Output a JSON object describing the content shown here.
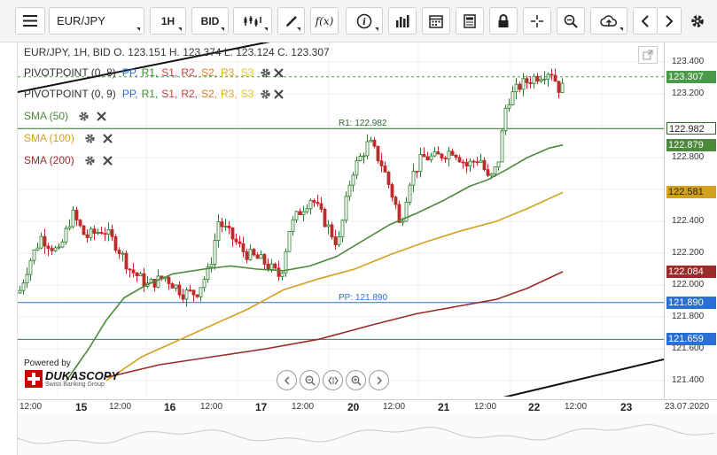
{
  "toolbar": {
    "menu_icon": "hamburger-menu-icon",
    "symbol": "EUR/JPY",
    "timeframe": "1H",
    "side": "BID",
    "buttons": [
      "chart-type-icon",
      "draw-icon",
      "function-icon",
      "info-icon",
      "volume-icon",
      "calendar-icon",
      "report-icon",
      "lock-icon",
      "crosshair-icon",
      "zoom-icon",
      "cloud-upload-icon",
      "arrow-left-icon",
      "arrow-right-icon",
      "gear-icon"
    ],
    "function_label": "f(x)"
  },
  "ohlc": {
    "text": "EUR/JPY, 1H, BID   O. 123.151 H. 123.374 L. 123.124 C. 123.307"
  },
  "legend": {
    "pivot1": "PIVOTPOINT (0, 8)",
    "pivot2": "PIVOTPOINT (0, 9)",
    "pivot_items": [
      {
        "label": "PP,",
        "color": "#2a6fd6"
      },
      {
        "label": "R1,",
        "color": "#3c8a2e"
      },
      {
        "label": "S1,",
        "color": "#d23b3b"
      },
      {
        "label": "R2,",
        "color": "#d23b3b"
      },
      {
        "label": "S2,",
        "color": "#e07b1a"
      },
      {
        "label": "R3,",
        "color": "#e0a91a"
      },
      {
        "label": "S3",
        "color": "#e8c41c"
      }
    ],
    "sma50": "SMA (50)",
    "sma100": "SMA (100)",
    "sma200": "SMA (200)",
    "sma50_color": "#4a8a3a",
    "sma100_color": "#d4a020",
    "sma200_color": "#9b2a2a"
  },
  "levels": {
    "r1_label": "R1: 122.982",
    "pp_label": "PP: 121.890"
  },
  "price_axis": {
    "ticks": [
      "123.400",
      "123.200",
      "122.800",
      "122.400",
      "122.200",
      "122.000",
      "121.800",
      "121.600",
      "121.400"
    ],
    "labels": [
      {
        "text": "123.307",
        "bg": "#4a9a4a",
        "fg": "#ffffff"
      },
      {
        "text": "122.982",
        "bg": "#ffffff",
        "fg": "#222222",
        "border": "#2e6a2e"
      },
      {
        "text": "122.879",
        "bg": "#4a8a3a",
        "fg": "#ffffff"
      },
      {
        "text": "122.581",
        "bg": "#d4a020",
        "fg": "#222222"
      },
      {
        "text": "122.084",
        "bg": "#9b2a2a",
        "fg": "#ffffff"
      },
      {
        "text": "121.890",
        "bg": "#2a6fd6",
        "fg": "#ffffff"
      },
      {
        "text": "121.659",
        "bg": "#2a6fd6",
        "fg": "#ffffff"
      }
    ]
  },
  "time_axis": {
    "ticks": [
      "12:00",
      "15",
      "12:00",
      "16",
      "12:00",
      "17",
      "12:00",
      "20",
      "12:00",
      "21",
      "12:00",
      "22",
      "12:00",
      "23",
      "23.07.2020"
    ]
  },
  "branding": {
    "powered": "Powered by",
    "name": "DUKASCOPY",
    "sub": "Swiss Banking Group"
  },
  "chart_data": {
    "type": "candlestick",
    "title": "",
    "xlabel": "",
    "ylabel": "",
    "ylim": [
      121.35,
      123.45
    ],
    "series_last": {
      "SMA (50)": 122.879,
      "SMA (100)": 122.581,
      "SMA (200)": 122.084
    },
    "pivot": {
      "R1": 122.982,
      "PP": 121.89,
      "S1": 121.659
    },
    "last_close": 123.307
  }
}
